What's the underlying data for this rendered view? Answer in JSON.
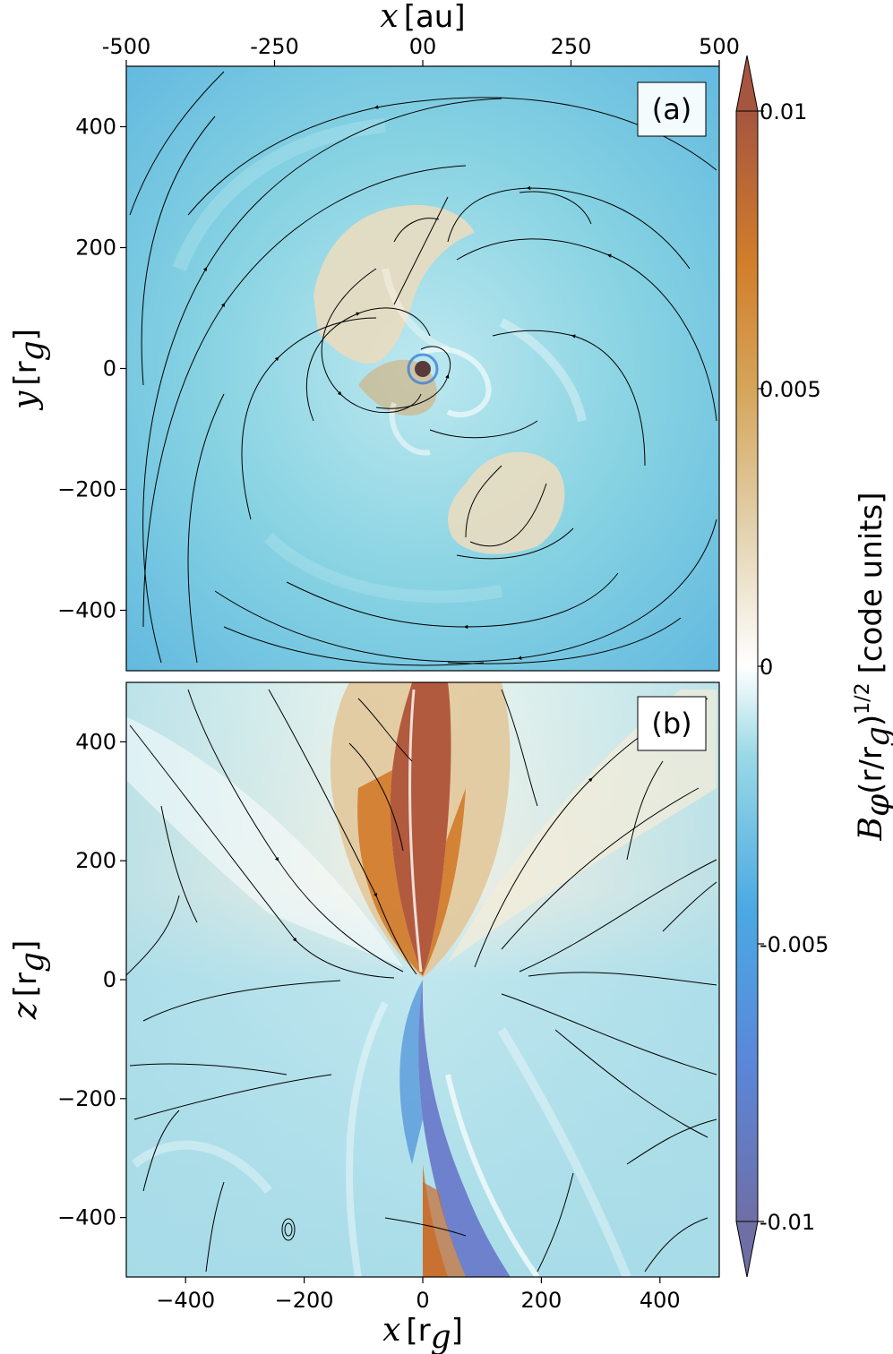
{
  "figure": {
    "top_axis_label_var": "x",
    "top_axis_label_unit": "[au]",
    "bottom_axis_label_var": "x",
    "bottom_axis_label_unit": "[r",
    "bottom_axis_label_sub": "g",
    "bottom_axis_label_close": "]",
    "colorbar_label": "B",
    "colorbar_label_sub": "φ",
    "colorbar_label_mid": "(r/r",
    "colorbar_label_sub2": "g",
    "colorbar_label_close": ")",
    "colorbar_label_exp": "1/2",
    "colorbar_label_units": "[code units]"
  },
  "chart_data": [
    {
      "type": "heatmap",
      "panel_label": "(a)",
      "ylabel_var": "y",
      "ylabel_unit": "[r",
      "ylabel_sub": "g",
      "ylabel_close": "]",
      "xlim": [
        -500,
        500
      ],
      "ylim": [
        -500,
        500
      ],
      "yticks": [
        400,
        200,
        0,
        -200,
        -400
      ],
      "ytick_labels": [
        "400",
        "200",
        "0",
        "−200",
        "−400"
      ],
      "top_xticks_au": [
        -500,
        -250,
        0,
        250,
        500
      ],
      "top_xtick_labels": [
        "-500",
        "-250",
        "00",
        "250",
        "500"
      ],
      "background_color": "#7ecfe0",
      "features": [
        "face-on spiral field pattern",
        "two tan spiral arms",
        "counter-clockwise streamlines"
      ]
    },
    {
      "type": "heatmap",
      "panel_label": "(b)",
      "ylabel_var": "z",
      "ylabel_unit": "[r",
      "ylabel_sub": "g",
      "ylabel_close": "]",
      "xlim": [
        -500,
        500
      ],
      "ylim": [
        -500,
        500
      ],
      "yticks": [
        400,
        200,
        0,
        -200,
        -400
      ],
      "ytick_labels": [
        "400",
        "200",
        "0",
        "−200",
        "−400"
      ],
      "xticks": [
        -400,
        -200,
        0,
        200,
        400
      ],
      "xtick_labels": [
        "−400",
        "−200",
        "0",
        "200",
        "400"
      ],
      "background_color": "#cfeef0",
      "features": [
        "edge-on jet",
        "positive toroidal field above midplane",
        "negative below midplane"
      ]
    }
  ],
  "colorbar": {
    "range": [
      -0.01,
      0.01
    ],
    "ticks": [
      0.01,
      0.005,
      0,
      -0.005,
      -0.01
    ],
    "tick_labels": [
      "0.01",
      "0.005",
      "0",
      "-0.005",
      "-0.01"
    ],
    "extend": "both",
    "colors": [
      "#6f6fa5",
      "#4aa3e0",
      "#ffffff",
      "#d9b77a",
      "#a6553f"
    ]
  }
}
